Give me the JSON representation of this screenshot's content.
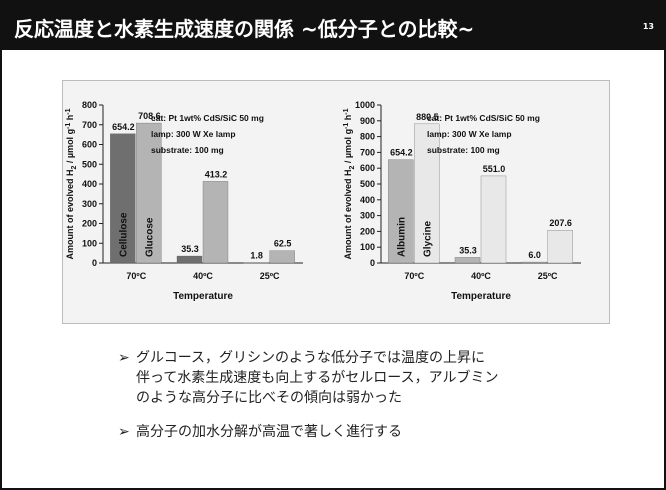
{
  "header": {
    "title": "反応温度と水素生成速度の関係 ~低分子との比較~",
    "page_number": "13"
  },
  "bullets": [
    {
      "mark": "➢",
      "text": "グルコース，グリシンのような低分子では温度の上昇に\n伴って水素生成速度も向上するがセルロース，アルブミン\nのような高分子に比べその傾向は弱かった"
    },
    {
      "mark": "➢",
      "text": "高分子の加水分解が高温で著しく進行する"
    }
  ],
  "chart_data": [
    {
      "type": "bar",
      "categories": [
        "70ºC",
        "40ºC",
        "25ºC"
      ],
      "series": [
        {
          "name": "Cellulose",
          "values": [
            654.2,
            35.3,
            1.8
          ],
          "color": "#6f6f6f"
        },
        {
          "name": "Glucose",
          "values": [
            708.6,
            413.2,
            62.5
          ],
          "color": "#b4b4b4"
        }
      ],
      "xlabel": "Temperature",
      "ylabel_parts": {
        "pre": "Amount of evolved H",
        "sub": "2",
        "mid": " / µmol g",
        "sup1": "-1",
        "mid2": " h",
        "sup2": "-1"
      },
      "ylim": [
        0,
        800
      ],
      "yticks": [
        0,
        100,
        200,
        300,
        400,
        500,
        600,
        700,
        800
      ],
      "conditions": [
        "cat: Pt 1wt% CdS/SiC 50 mg",
        "lamp: 300 W Xe lamp",
        "substrate: 100 mg"
      ]
    },
    {
      "type": "bar",
      "categories": [
        "70ºC",
        "40ºC",
        "25ºC"
      ],
      "series": [
        {
          "name": "Albumin",
          "values": [
            654.2,
            35.3,
            6.0
          ],
          "color": "#b4b4b4"
        },
        {
          "name": "Glycine",
          "values": [
            880.5,
            551.0,
            207.6
          ],
          "color": "#e8e8e8"
        }
      ],
      "xlabel": "Temperature",
      "ylabel_parts": {
        "pre": "Amount of evolved H",
        "sub": "2",
        "mid": " / µmol g",
        "sup1": "-1",
        "mid2": " h",
        "sup2": "-1"
      },
      "ylim": [
        0,
        1000
      ],
      "yticks": [
        0,
        100,
        200,
        300,
        400,
        500,
        600,
        700,
        800,
        900,
        1000
      ],
      "conditions": [
        "cat: Pt 1wt% CdS/SiC 50 mg",
        "lamp: 300 W Xe lamp",
        "substrate: 100 mg"
      ]
    }
  ]
}
